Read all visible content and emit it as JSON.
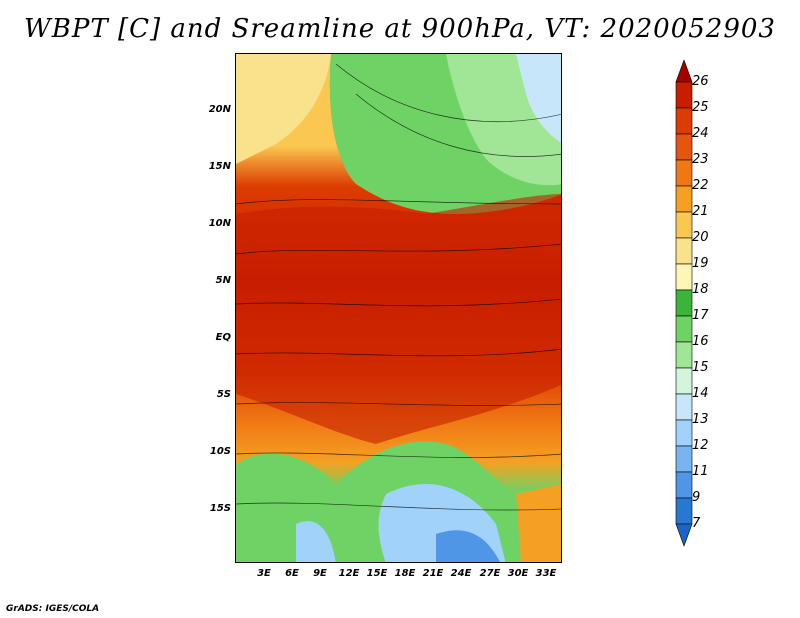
{
  "title": "WBPT [C] and Sreamline at 900hPa, VT: 2020052903",
  "footer": "GrADS: IGES/COLA",
  "lat_labels": [
    "20N",
    "15N",
    "10N",
    "5N",
    "EQ",
    "5S",
    "10S",
    "15S"
  ],
  "lon_labels": [
    "3E",
    "6E",
    "9E",
    "12E",
    "15E",
    "18E",
    "21E",
    "24E",
    "27E",
    "30E",
    "33E"
  ],
  "colorbar": {
    "labels": [
      "26",
      "25",
      "24",
      "23",
      "22",
      "21",
      "20",
      "19",
      "18",
      "17",
      "16",
      "15",
      "14",
      "13",
      "12",
      "11",
      "9",
      "7"
    ],
    "colors": [
      "#a50000",
      "#c81e00",
      "#dc3c00",
      "#e6550d",
      "#f07814",
      "#f5a023",
      "#fac850",
      "#fae18c",
      "#fff5b4",
      "#3cb43c",
      "#6ed264",
      "#a0e696",
      "#d2f5dc",
      "#c8e6fa",
      "#a0d2fa",
      "#78b4f0",
      "#5096e6",
      "#2878d2",
      "#1e64c8"
    ]
  }
}
